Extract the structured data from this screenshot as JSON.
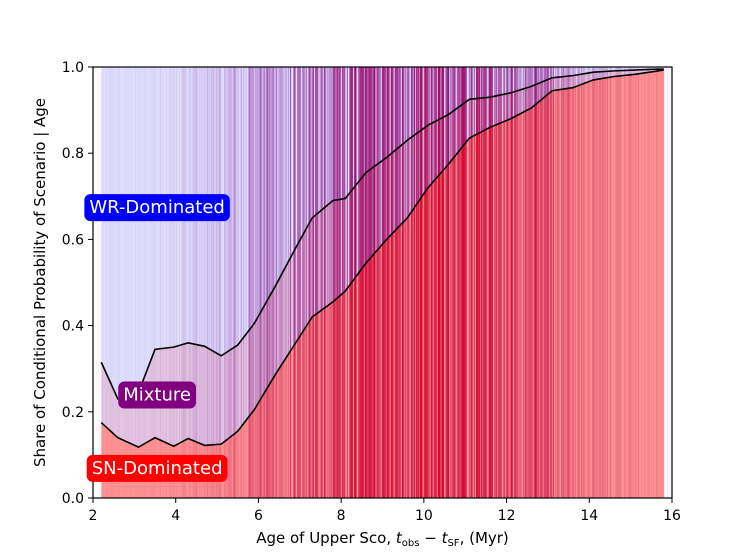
{
  "chart_data": {
    "type": "area",
    "title": "",
    "xlabel": "Age of Upper Sco, t_obs − t_SF, (Myr)",
    "xlabel_parts": {
      "prefix": "Age of Upper Sco, ",
      "t1": "t",
      "sub1": "obs",
      "minus": " − ",
      "t2": "t",
      "sub2": "SF",
      "suffix": ", (Myr)"
    },
    "ylabel": "Share of Conditional Probability of Scenario | Age",
    "xlim": [
      2,
      16
    ],
    "ylim": [
      0,
      1
    ],
    "xticks": [
      2,
      4,
      6,
      8,
      10,
      12,
      14,
      16
    ],
    "yticks": [
      0.0,
      0.2,
      0.4,
      0.6,
      0.8,
      1.0
    ],
    "ytick_labels": [
      "0.0",
      "0.2",
      "0.4",
      "0.6",
      "0.8",
      "1.0"
    ],
    "x": [
      2.2,
      2.6,
      3.1,
      3.5,
      3.95,
      4.3,
      4.7,
      5.1,
      5.5,
      5.9,
      6.4,
      6.9,
      7.3,
      7.8,
      8.1,
      8.6,
      9.1,
      9.6,
      10.1,
      10.6,
      11.1,
      11.6,
      12.1,
      12.6,
      13.1,
      13.6,
      14.1,
      14.6,
      15.1,
      15.6,
      15.8
    ],
    "series": [
      {
        "name": "SN-Dominated",
        "color": "#ff0000",
        "values": [
          0.175,
          0.14,
          0.118,
          0.14,
          0.12,
          0.138,
          0.122,
          0.125,
          0.155,
          0.205,
          0.285,
          0.36,
          0.42,
          0.455,
          0.48,
          0.545,
          0.6,
          0.65,
          0.72,
          0.775,
          0.835,
          0.86,
          0.88,
          0.905,
          0.945,
          0.952,
          0.97,
          0.978,
          0.983,
          0.99,
          0.993
        ]
      },
      {
        "name": "Mixture",
        "color": "#800080",
        "values": [
          0.14,
          0.09,
          0.127,
          0.205,
          0.23,
          0.222,
          0.23,
          0.205,
          0.2,
          0.2,
          0.205,
          0.22,
          0.23,
          0.235,
          0.215,
          0.21,
          0.19,
          0.18,
          0.145,
          0.115,
          0.09,
          0.07,
          0.06,
          0.05,
          0.03,
          0.028,
          0.018,
          0.013,
          0.01,
          0.005,
          0.002
        ]
      },
      {
        "name": "WR-Dominated",
        "color": "#0000ff",
        "values": [
          0.685,
          0.77,
          0.755,
          0.655,
          0.65,
          0.64,
          0.648,
          0.67,
          0.645,
          0.595,
          0.51,
          0.42,
          0.35,
          0.31,
          0.305,
          0.245,
          0.21,
          0.17,
          0.135,
          0.11,
          0.075,
          0.07,
          0.06,
          0.045,
          0.025,
          0.02,
          0.012,
          0.009,
          0.007,
          0.005,
          0.005
        ]
      }
    ],
    "background_bands": {
      "x_range": [
        2,
        16
      ],
      "peak_x": 9.9,
      "spread_myr": 2.5,
      "top_color": "#0000ff",
      "bottom_color": "#ff0000"
    },
    "annotations": [
      {
        "text": "WR-Dominated",
        "x": 3.55,
        "y": 0.675,
        "box_color": "#0000ff",
        "text_color": "#ffffff"
      },
      {
        "text": "Mixture",
        "x": 3.55,
        "y": 0.24,
        "box_color": "#800080",
        "text_color": "#ffffff"
      },
      {
        "text": "SN-Dominated",
        "x": 3.55,
        "y": 0.07,
        "box_color": "#ff0000",
        "text_color": "#ffffff"
      }
    ]
  }
}
